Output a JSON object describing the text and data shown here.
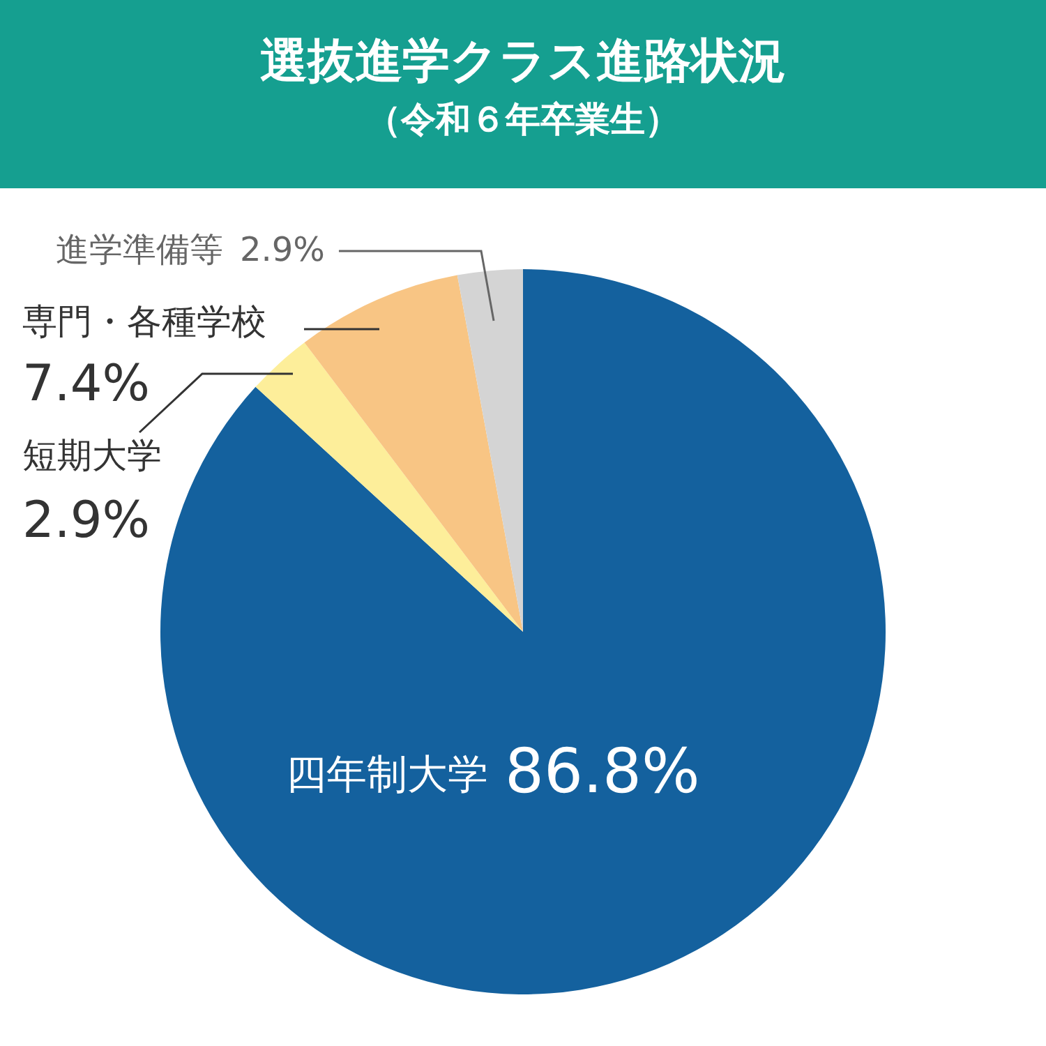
{
  "chart_data": {
    "type": "pie",
    "title": "選抜進学クラス進路状況",
    "subtitle": "（令和６年卒業生）",
    "categories": [
      "四年制大学",
      "短期大学",
      "専門・各種学校",
      "進学準備等"
    ],
    "values": [
      86.8,
      2.9,
      7.4,
      2.9
    ],
    "colors": [
      "#14619e",
      "#fdee9a",
      "#f8c584",
      "#d4d4d4"
    ],
    "value_labels": [
      "86.8%",
      "2.9%",
      "7.4%",
      "2.9%"
    ],
    "legend": false
  }
}
